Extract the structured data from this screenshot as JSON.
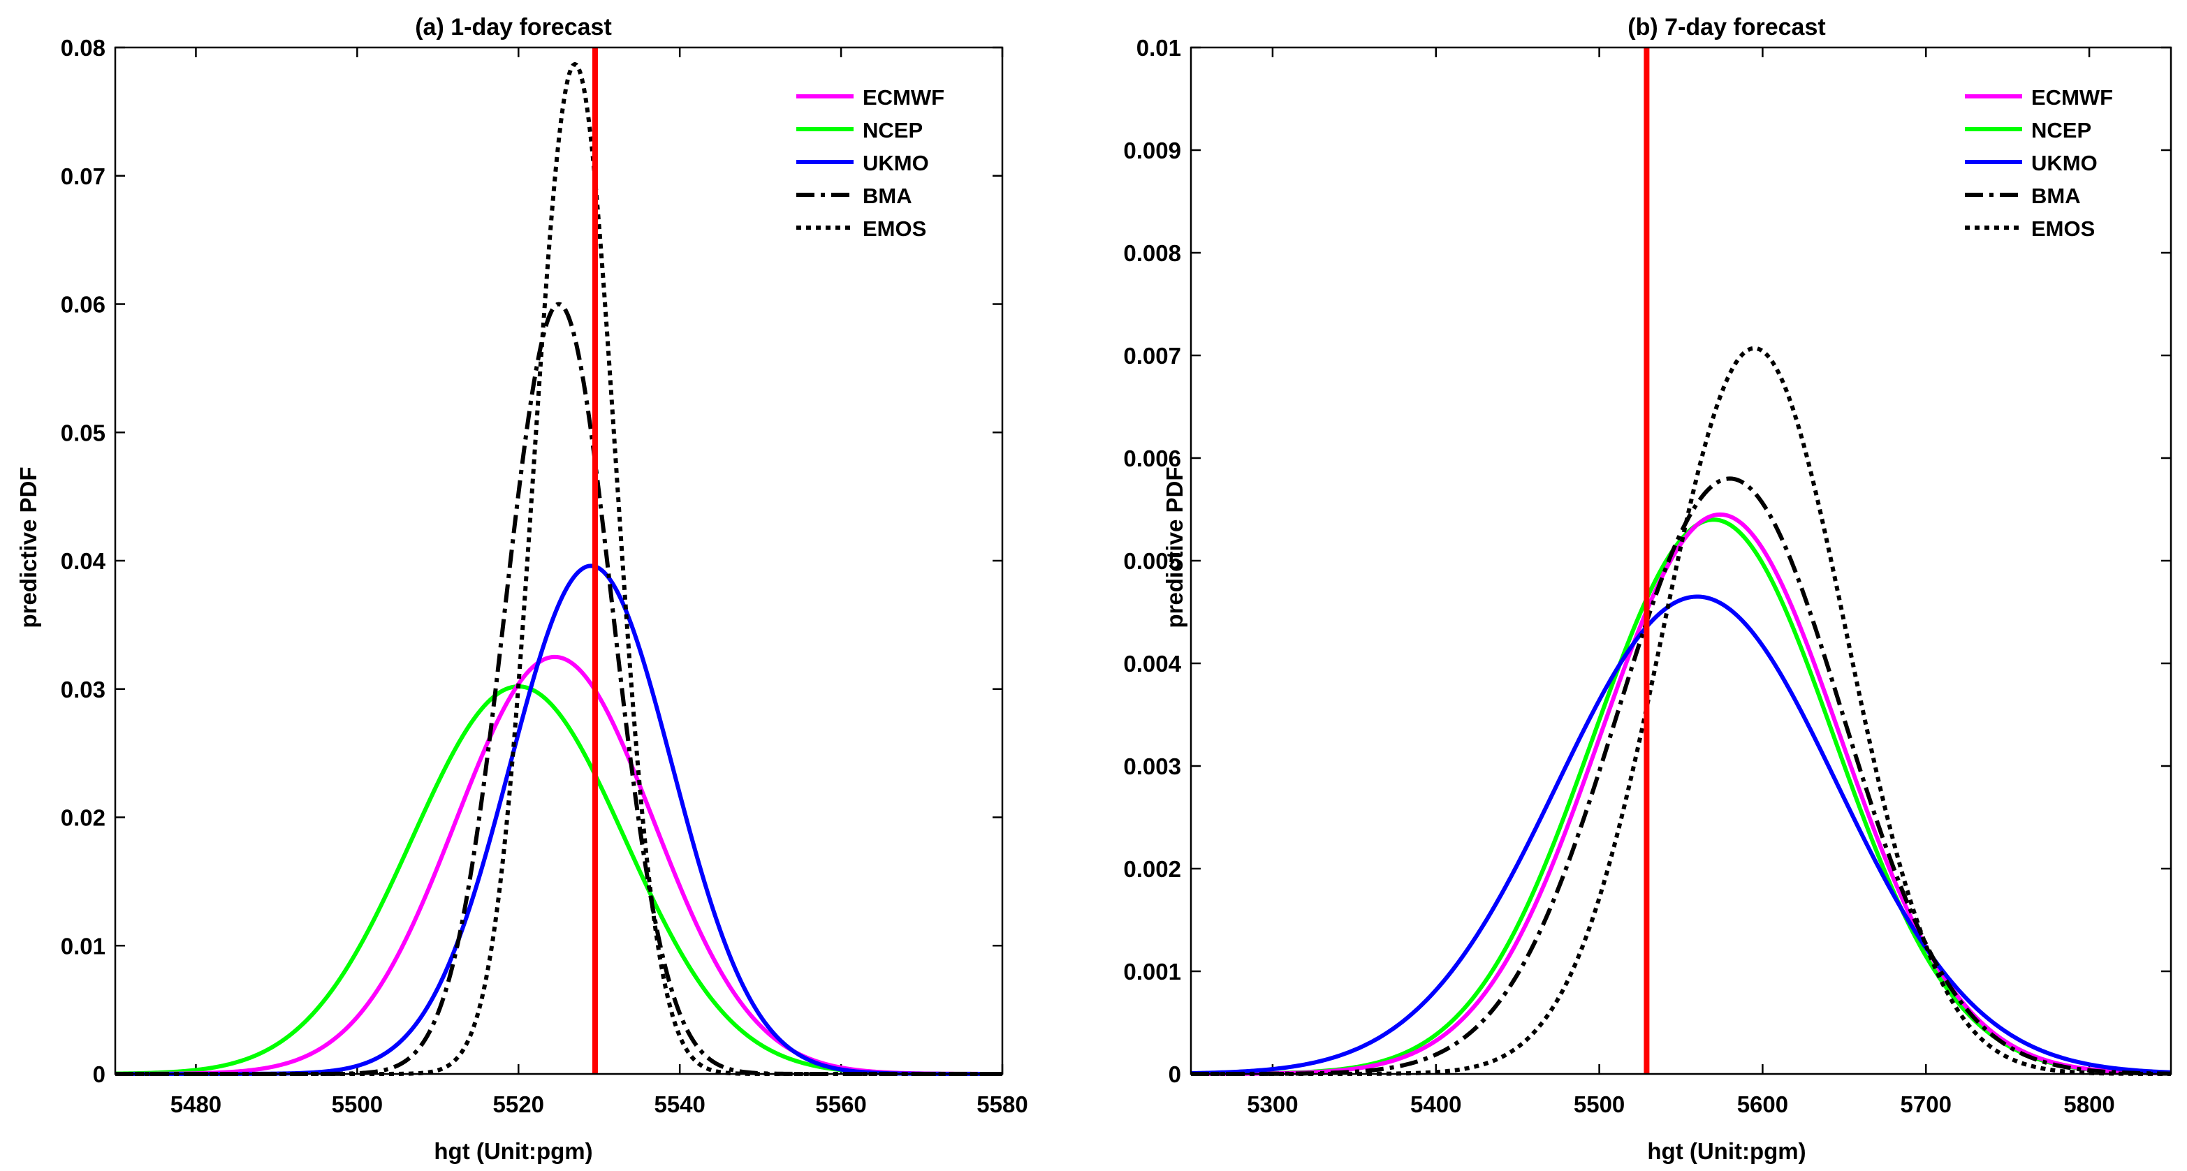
{
  "chart_data": [
    {
      "type": "line",
      "title": "(a) 1-day forecast",
      "xlabel": "hgt (Unit:pgm)",
      "ylabel": "predictive PDF",
      "xlim": [
        5470,
        5580
      ],
      "ylim": [
        0,
        0.08
      ],
      "xticks": [
        5480,
        5500,
        5520,
        5540,
        5560,
        5580
      ],
      "xtick_labels": [
        "5480",
        "5500",
        "5520",
        "5540",
        "5560",
        "5580"
      ],
      "yticks": [
        0,
        0.01,
        0.02,
        0.03,
        0.04,
        0.05,
        0.06,
        0.07,
        0.08
      ],
      "ytick_labels": [
        "0",
        "0.01",
        "0.02",
        "0.03",
        "0.04",
        "0.05",
        "0.06",
        "0.07",
        "0.08"
      ],
      "grid": false,
      "legend_position": "top-right",
      "observation_line": 5529.5,
      "series": [
        {
          "name": "ECMWF",
          "color": "#ff00ff",
          "dash": "solid",
          "peak_x": 5524.5,
          "peak_y": 0.0325
        },
        {
          "name": "NCEP",
          "color": "#00ff00",
          "dash": "solid",
          "peak_x": 5520,
          "peak_y": 0.0302
        },
        {
          "name": "UKMO",
          "color": "#0000ff",
          "dash": "solid",
          "peak_x": 5529,
          "peak_y": 0.0396
        },
        {
          "name": "BMA",
          "color": "#000000",
          "dash": "dashdot",
          "peak_x": 5525,
          "peak_y": 0.06
        },
        {
          "name": "EMOS",
          "color": "#000000",
          "dash": "dotted",
          "peak_x": 5527,
          "peak_y": 0.0787
        }
      ]
    },
    {
      "type": "line",
      "title": "(b) 7-day forecast",
      "xlabel": "hgt (Unit:pgm)",
      "ylabel": "predictive PDF",
      "xlim": [
        5250,
        5850
      ],
      "ylim": [
        0,
        0.01
      ],
      "xticks": [
        5300,
        5400,
        5500,
        5600,
        5700,
        5800
      ],
      "xtick_labels": [
        "5300",
        "5400",
        "5500",
        "5600",
        "5700",
        "5800"
      ],
      "yticks": [
        0,
        0.001,
        0.002,
        0.003,
        0.004,
        0.005,
        0.006,
        0.007,
        0.008,
        0.009,
        0.01
      ],
      "ytick_labels": [
        "0",
        "0.001",
        "0.002",
        "0.003",
        "0.004",
        "0.005",
        "0.006",
        "0.007",
        "0.008",
        "0.009",
        "0.01"
      ],
      "grid": false,
      "legend_position": "top-right",
      "observation_line": 5529,
      "series": [
        {
          "name": "ECMWF",
          "color": "#ff00ff",
          "dash": "solid",
          "peak_x": 5574,
          "peak_y": 0.00545
        },
        {
          "name": "NCEP",
          "color": "#00ff00",
          "dash": "solid",
          "peak_x": 5570,
          "peak_y": 0.0054
        },
        {
          "name": "UKMO",
          "color": "#0000ff",
          "dash": "solid",
          "peak_x": 5560,
          "peak_y": 0.00465
        },
        {
          "name": "BMA",
          "color": "#000000",
          "dash": "dashdot",
          "peak_x": 5580,
          "peak_y": 0.0058
        },
        {
          "name": "EMOS",
          "color": "#000000",
          "dash": "dotted",
          "peak_x": 5595,
          "peak_y": 0.00707
        }
      ]
    }
  ],
  "colors": {
    "observation": "#ff0000"
  }
}
